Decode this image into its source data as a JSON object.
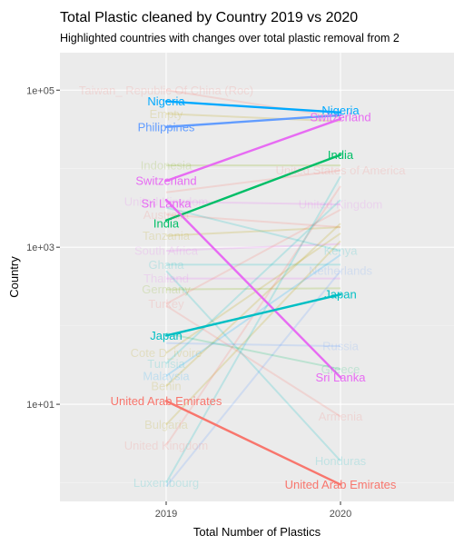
{
  "chart_data": {
    "type": "line",
    "title": "Total Plastic cleaned by Country 2019 vs 2020",
    "subtitle": "Highlighted countries with changes over total plastic removal from 2",
    "xlabel": "Total Number of Plastics",
    "ylabel": "Country",
    "categories": [
      "2019",
      "2020"
    ],
    "y_scale": "log10",
    "ylim": [
      0.58,
      300000
    ],
    "y_ticks": [
      {
        "value": 10,
        "label": "1e+01"
      },
      {
        "value": 1000,
        "label": "1e+03"
      },
      {
        "value": 100000,
        "label": "1e+05"
      }
    ],
    "grid": true,
    "highlighted_series": [
      {
        "name": "Nigeria",
        "values": [
          72000,
          52000
        ],
        "color": "#00a9ff"
      },
      {
        "name": "Philippines",
        "values": [
          34000,
          48000
        ],
        "color": "#619cff"
      },
      {
        "name": "Switzerland",
        "values": [
          7000,
          43000
        ],
        "color": "#e76bf3"
      },
      {
        "name": "India",
        "values": [
          2200,
          15000
        ],
        "color": "#00be67"
      },
      {
        "name": "Sri Lanka",
        "values": [
          4000,
          22
        ],
        "color": "#e76bf3"
      },
      {
        "name": "Japan",
        "values": [
          75,
          250
        ],
        "color": "#00bfc4"
      },
      {
        "name": "United Arab Emirates",
        "values": [
          11,
          0.95
        ],
        "color": "#f8766d"
      }
    ],
    "faded_series": [
      {
        "name": "Taiwan_ Republic Of China (Roc)",
        "values": [
          100000,
          45000
        ],
        "color": "#f8766d"
      },
      {
        "name": "Empty",
        "values": [
          50000,
          40000
        ],
        "color": "#b79f00"
      },
      {
        "name": "Indonesia",
        "values": [
          11000,
          11000
        ],
        "color": "#7cae00"
      },
      {
        "name": "United States of America",
        "values": [
          5000,
          9500
        ],
        "color": "#f8766d"
      },
      {
        "name": "United Kingdom",
        "values": [
          3800,
          3500
        ],
        "color": "#e76bf3"
      },
      {
        "name": "Australia",
        "values": [
          2600,
          1800
        ],
        "color": "#f8766d"
      },
      {
        "name": "Kenya",
        "values": [
          3200,
          900
        ],
        "color": "#00bfc4"
      },
      {
        "name": "Tanzania",
        "values": [
          1400,
          1800
        ],
        "color": "#b79f00"
      },
      {
        "name": "South Africa",
        "values": [
          900,
          1100
        ],
        "color": "#e76bf3"
      },
      {
        "name": "Ghana",
        "values": [
          600,
          600
        ],
        "color": "#00bfc4"
      },
      {
        "name": "Thailand",
        "values": [
          400,
          400
        ],
        "color": "#e76bf3"
      },
      {
        "name": "Germany",
        "values": [
          290,
          300
        ],
        "color": "#7cae00"
      },
      {
        "name": "Turkey",
        "values": [
          190,
          3000
        ],
        "color": "#f8766d"
      },
      {
        "name": "Cote D_ivoire",
        "values": [
          45,
          1500
        ],
        "color": "#b79f00"
      },
      {
        "name": "Tunisia",
        "values": [
          33,
          4000
        ],
        "color": "#00bfc4"
      },
      {
        "name": "Malaysia",
        "values": [
          23,
          800
        ],
        "color": "#00a9ff"
      },
      {
        "name": "Benin",
        "values": [
          17,
          2000
        ],
        "color": "#b79f00"
      },
      {
        "name": "Bulgaria",
        "values": [
          5.5,
          1200
        ],
        "color": "#b79f00"
      },
      {
        "name": "United Kingdom",
        "values": [
          3,
          6000
        ],
        "color": "#f8766d"
      },
      {
        "name": "Luxembourg",
        "values": [
          1,
          8000
        ],
        "color": "#00bfc4"
      },
      {
        "name": "Netherlands",
        "values": [
          0.9,
          500
        ],
        "color": "#619cff"
      },
      {
        "name": "Russia",
        "values": [
          60,
          55
        ],
        "color": "#619cff"
      },
      {
        "name": "Greece",
        "values": [
          80,
          28
        ],
        "color": "#00be67"
      },
      {
        "name": "Armenia",
        "values": [
          180,
          7
        ],
        "color": "#f8766d"
      },
      {
        "name": "Honduras",
        "values": [
          500,
          1.9
        ],
        "color": "#00bfc4"
      }
    ],
    "labels_2019": [
      {
        "text": "Taiwan_ Republic Of China (Roc)",
        "value": 100000,
        "color": "#f8766d",
        "faded": true
      },
      {
        "text": "Nigeria",
        "value": 72000,
        "color": "#00a9ff",
        "faded": false
      },
      {
        "text": "Empty",
        "value": 50000,
        "color": "#b79f00",
        "faded": true
      },
      {
        "text": "Philippines",
        "value": 34000,
        "color": "#619cff",
        "faded": false
      },
      {
        "text": "Indonesia",
        "value": 11000,
        "color": "#7cae00",
        "faded": true
      },
      {
        "text": "Switzerland",
        "value": 7000,
        "color": "#e76bf3",
        "faded": false
      },
      {
        "text": "United Kingdom",
        "value": 3800,
        "color": "#e76bf3",
        "faded": true
      },
      {
        "text": "Sri Lanka",
        "value": 3600,
        "color": "#e76bf3",
        "faded": false
      },
      {
        "text": "Australia",
        "value": 2600,
        "color": "#f8766d",
        "faded": true
      },
      {
        "text": "India",
        "value": 2000,
        "color": "#00be67",
        "faded": false
      },
      {
        "text": "Tanzania",
        "value": 1400,
        "color": "#b79f00",
        "faded": true
      },
      {
        "text": "South Africa",
        "value": 900,
        "color": "#e76bf3",
        "faded": true
      },
      {
        "text": "Ghana",
        "value": 600,
        "color": "#00bfc4",
        "faded": true
      },
      {
        "text": "Thailand",
        "value": 400,
        "color": "#e76bf3",
        "faded": true
      },
      {
        "text": "Germany",
        "value": 290,
        "color": "#7cae00",
        "faded": true
      },
      {
        "text": "Turkey",
        "value": 190,
        "color": "#f8766d",
        "faded": true
      },
      {
        "text": "Japan",
        "value": 75,
        "color": "#00bfc4",
        "faded": false
      },
      {
        "text": "Cote D_ivoire",
        "value": 45,
        "color": "#b79f00",
        "faded": true
      },
      {
        "text": "Tunisia",
        "value": 33,
        "color": "#00bfc4",
        "faded": true
      },
      {
        "text": "Malaysia",
        "value": 23,
        "color": "#00a9ff",
        "faded": true
      },
      {
        "text": "Benin",
        "value": 17,
        "color": "#b79f00",
        "faded": true
      },
      {
        "text": "United Arab Emirates",
        "value": 11,
        "color": "#f8766d",
        "faded": false
      },
      {
        "text": "Bulgaria",
        "value": 5.5,
        "color": "#b79f00",
        "faded": true
      },
      {
        "text": "United Kingdom",
        "value": 3,
        "color": "#f8766d",
        "faded": true
      },
      {
        "text": "Luxembourg",
        "value": 1,
        "color": "#00bfc4",
        "faded": true
      }
    ],
    "labels_2020": [
      {
        "text": "Nigeria",
        "value": 55000,
        "color": "#00a9ff",
        "faded": false
      },
      {
        "text": "Switzerland",
        "value": 45000,
        "color": "#e76bf3",
        "faded": false
      },
      {
        "text": "United States of America",
        "value": 9500,
        "color": "#f8766d",
        "faded": true
      },
      {
        "text": "India",
        "value": 15000,
        "color": "#00be67",
        "faded": false
      },
      {
        "text": "United Kingdom",
        "value": 3500,
        "color": "#e76bf3",
        "faded": true
      },
      {
        "text": "Kenya",
        "value": 900,
        "color": "#00bfc4",
        "faded": true
      },
      {
        "text": "Netherlands",
        "value": 500,
        "color": "#619cff",
        "faded": true
      },
      {
        "text": "Japan",
        "value": 250,
        "color": "#00bfc4",
        "faded": false
      },
      {
        "text": "Russia",
        "value": 55,
        "color": "#619cff",
        "faded": true
      },
      {
        "text": "Greece",
        "value": 28,
        "color": "#00be67",
        "faded": true
      },
      {
        "text": "Sri Lanka",
        "value": 22,
        "color": "#e76bf3",
        "faded": false
      },
      {
        "text": "Armenia",
        "value": 7,
        "color": "#f8766d",
        "faded": true
      },
      {
        "text": "Honduras",
        "value": 1.9,
        "color": "#00bfc4",
        "faded": true
      },
      {
        "text": "United Arab Emirates",
        "value": 0.95,
        "color": "#f8766d",
        "faded": false
      }
    ]
  },
  "colors": {
    "panel_background": "#ebebeb",
    "grid_major": "#ffffff",
    "grid_minor": "#f5f5f5"
  }
}
